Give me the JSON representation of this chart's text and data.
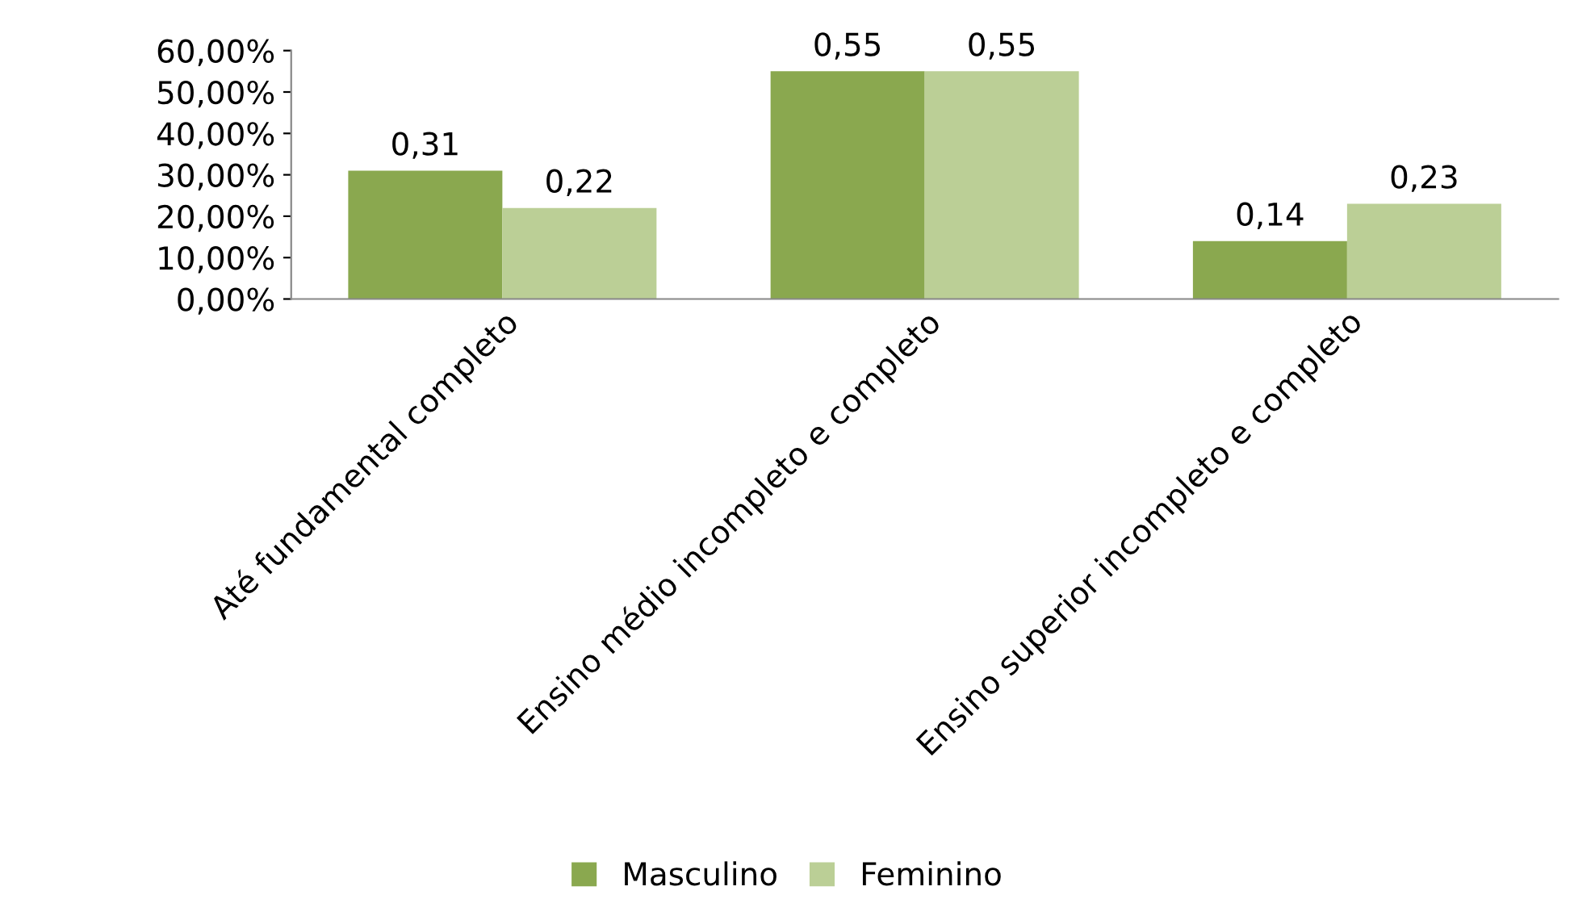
{
  "chart_data": {
    "type": "bar",
    "categories": [
      "Até fundamental completo",
      "Ensino médio incompleto e completo",
      "Ensino superior incompleto e completo"
    ],
    "series": [
      {
        "name": "Masculino",
        "color": "#8aa84f",
        "values": [
          0.31,
          0.55,
          0.14
        ],
        "value_labels": [
          "0,31",
          "0,55",
          "0,14"
        ]
      },
      {
        "name": "Feminino",
        "color": "#bbcf96",
        "values": [
          0.22,
          0.55,
          0.23
        ],
        "value_labels": [
          "0,22",
          "0,55",
          "0,23"
        ]
      }
    ],
    "ylim": [
      0,
      0.6
    ],
    "yticks": [
      {
        "value": 0,
        "label": "0,00%"
      },
      {
        "value": 0.1,
        "label": "10,00%"
      },
      {
        "value": 0.2,
        "label": "20,00%"
      },
      {
        "value": 0.3,
        "label": "30,00%"
      },
      {
        "value": 0.4,
        "label": "40,00%"
      },
      {
        "value": 0.5,
        "label": "50,00%"
      },
      {
        "value": 0.6,
        "label": "60,00%"
      }
    ],
    "grid": false,
    "legend": "bottom"
  }
}
